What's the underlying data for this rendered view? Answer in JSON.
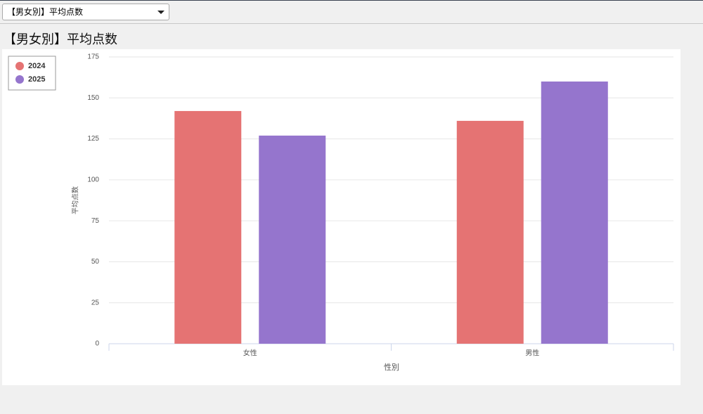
{
  "dropdown": {
    "selected": "【男女別】平均点数"
  },
  "chart_data": {
    "type": "bar",
    "title": "【男女別】平均点数",
    "x_label": "性別",
    "y_label": "平均点数",
    "categories": [
      "女性",
      "男性"
    ],
    "series": [
      {
        "name": "2024",
        "color": "#e57373",
        "values": [
          142,
          136
        ]
      },
      {
        "name": "2025",
        "color": "#9575cd",
        "values": [
          127,
          160
        ]
      }
    ],
    "ylim": [
      0,
      175
    ],
    "yticks": [
      0,
      25,
      50,
      75,
      100,
      125,
      150,
      175
    ],
    "grid": true,
    "legend": "top-left"
  }
}
